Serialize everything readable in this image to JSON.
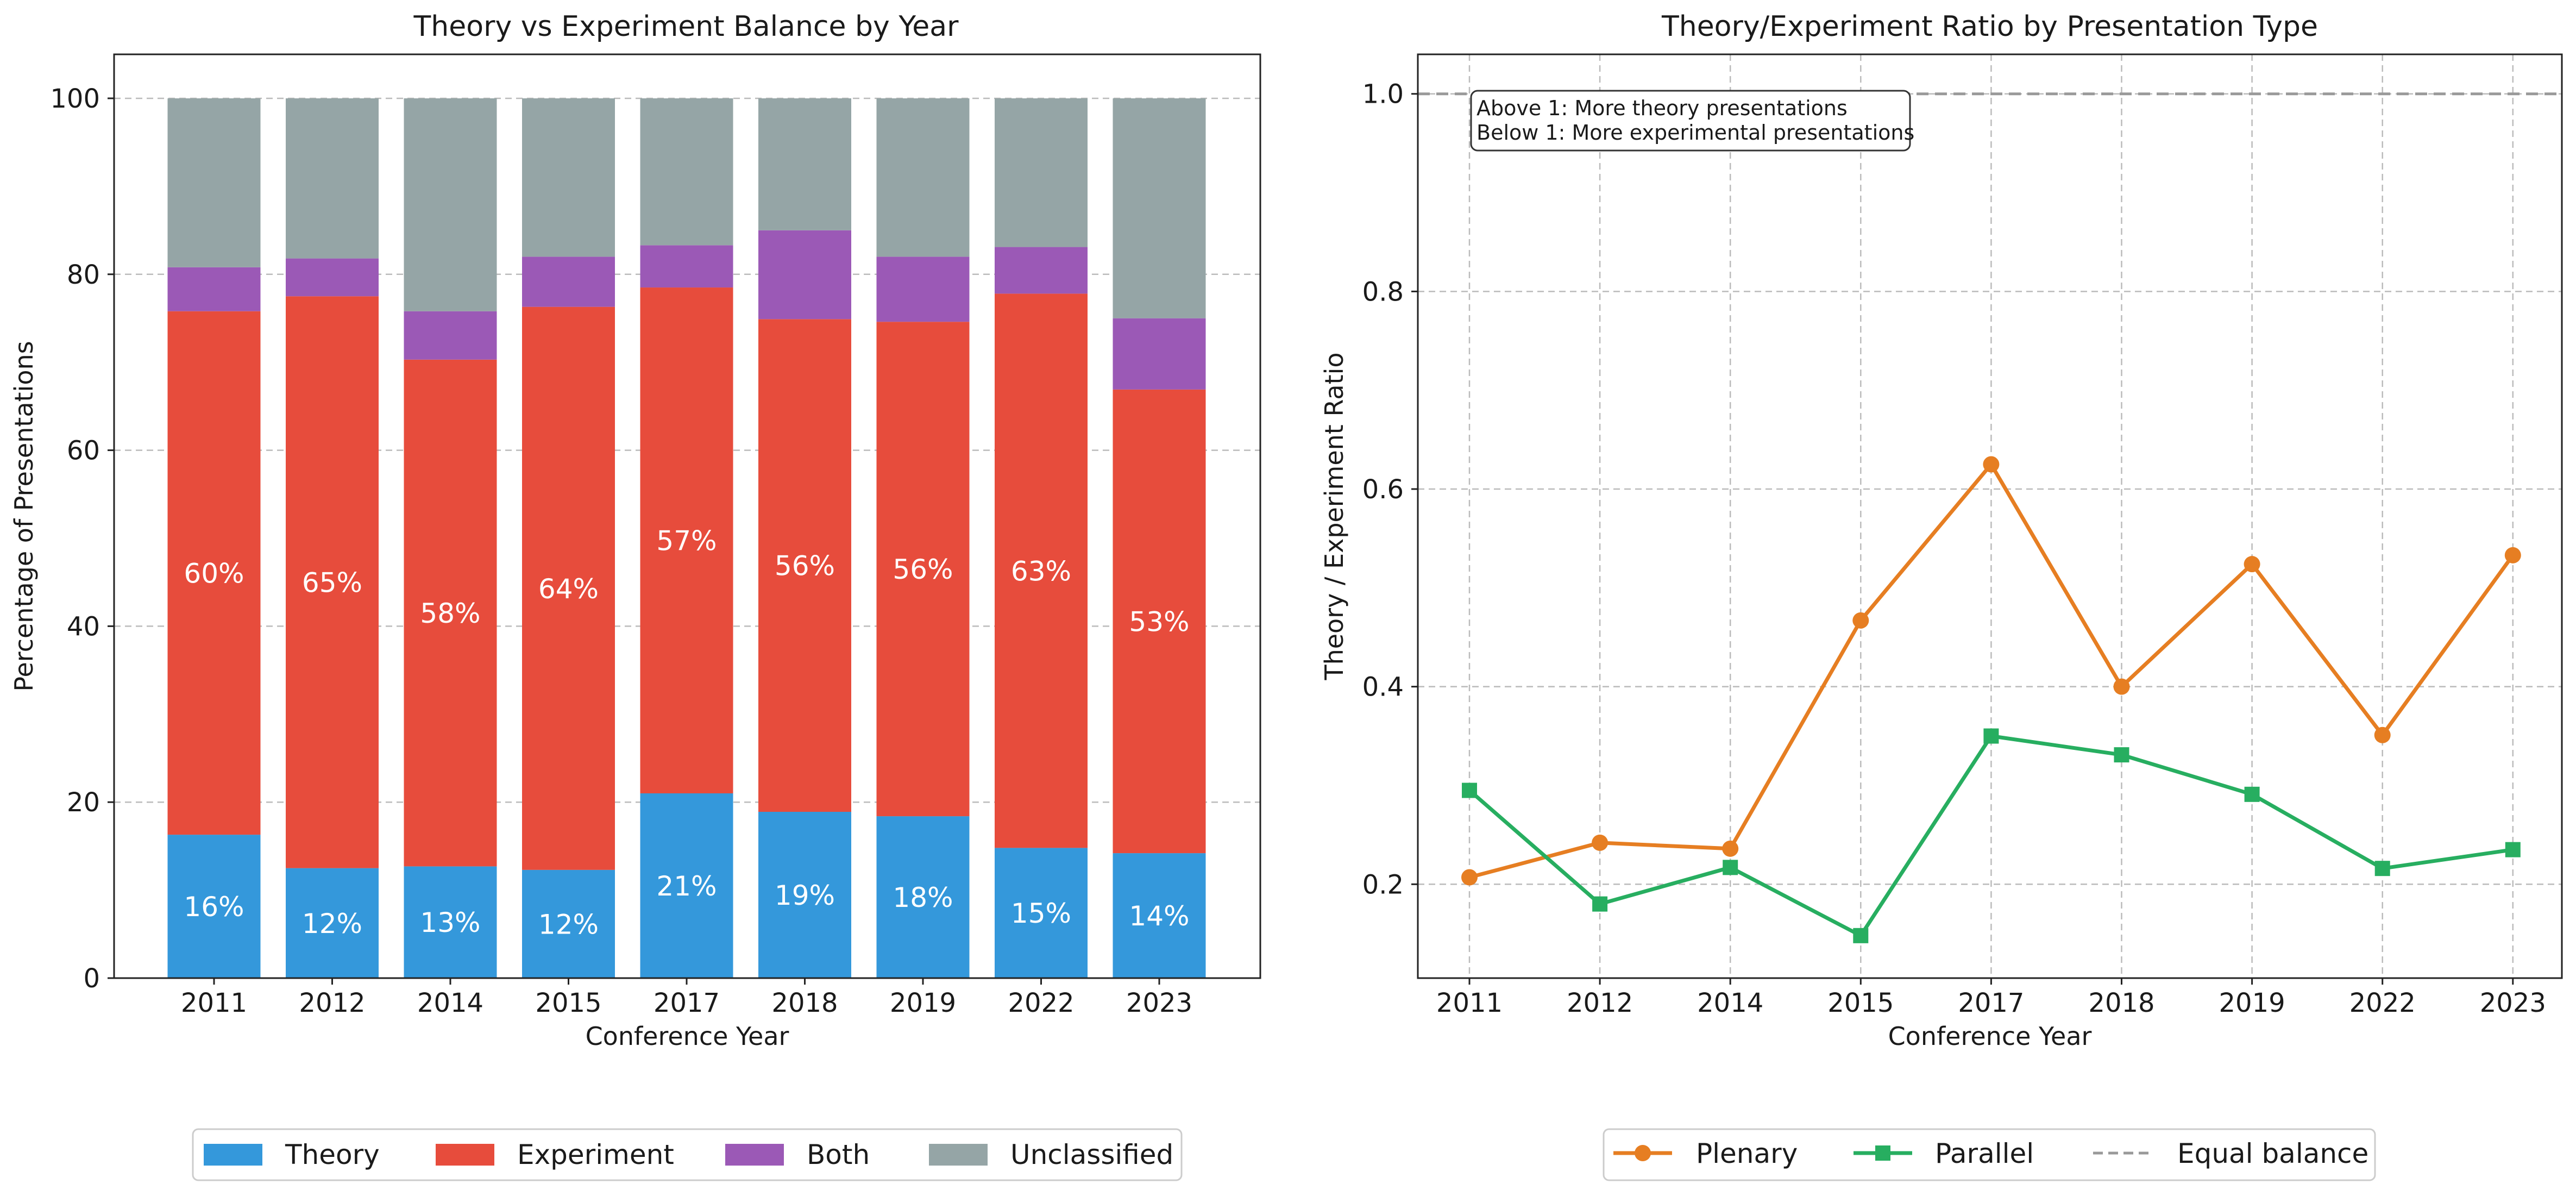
{
  "colors": {
    "theory": "#3498db",
    "experiment": "#e74c3c",
    "both": "#9b59b6",
    "unclassified": "#95a5a6",
    "plenary": "#e67e22",
    "parallel": "#27ae60",
    "equal": "#999999"
  },
  "chart_data": [
    {
      "type": "bar",
      "stacked": true,
      "title": "Theory vs Experiment Balance by Year",
      "xlabel": "Conference Year",
      "ylabel": "Percentage of Presentations",
      "ylim": [
        0,
        105
      ],
      "yticks": [
        "0",
        "20",
        "40",
        "60",
        "80",
        "100"
      ],
      "grid": true,
      "legend_position": "bottom-center",
      "categories": [
        "2011",
        "2012",
        "2014",
        "2015",
        "2017",
        "2018",
        "2019",
        "2022",
        "2023"
      ],
      "series": [
        {
          "name": "Theory",
          "color_key": "theory",
          "values": [
            16.3,
            12.5,
            12.7,
            12.3,
            21.0,
            18.9,
            18.4,
            14.8,
            14.2
          ]
        },
        {
          "name": "Experiment",
          "color_key": "experiment",
          "values": [
            59.5,
            65.0,
            57.6,
            64.0,
            57.5,
            56.0,
            56.2,
            63.0,
            52.7
          ]
        },
        {
          "name": "Both",
          "color_key": "both",
          "values": [
            5.0,
            4.3,
            5.5,
            5.7,
            4.8,
            10.1,
            7.4,
            5.3,
            8.1
          ]
        },
        {
          "name": "Unclassified",
          "color_key": "unclassified",
          "values": [
            19.2,
            18.2,
            24.2,
            18.0,
            16.7,
            15.0,
            18.0,
            16.9,
            25.0
          ]
        }
      ],
      "bar_labels": {
        "Theory": [
          "16%",
          "12%",
          "13%",
          "12%",
          "21%",
          "19%",
          "18%",
          "15%",
          "14%"
        ],
        "Experiment": [
          "60%",
          "65%",
          "58%",
          "64%",
          "57%",
          "56%",
          "56%",
          "63%",
          "53%"
        ]
      }
    },
    {
      "type": "line",
      "title": "Theory/Experiment Ratio by Presentation Type",
      "xlabel": "Conference Year",
      "ylabel": "Theory / Experiment Ratio",
      "ylim": [
        0.105,
        1.04
      ],
      "yticks": [
        "0.2",
        "0.4",
        "0.6",
        "0.8",
        "1.0"
      ],
      "grid": true,
      "legend_position": "bottom-center",
      "categories": [
        "2011",
        "2012",
        "2014",
        "2015",
        "2017",
        "2018",
        "2019",
        "2022",
        "2023"
      ],
      "series": [
        {
          "name": "Plenary",
          "color_key": "plenary",
          "marker": "circle",
          "values": [
            0.207,
            0.242,
            0.236,
            0.467,
            0.625,
            0.4,
            0.524,
            0.351,
            0.533
          ]
        },
        {
          "name": "Parallel",
          "color_key": "parallel",
          "marker": "square",
          "values": [
            0.295,
            0.18,
            0.217,
            0.148,
            0.35,
            0.331,
            0.291,
            0.216,
            0.235
          ]
        }
      ],
      "reference_line": {
        "name": "Equal balance",
        "y": 1.0,
        "style": "dashed",
        "color_key": "equal"
      },
      "annotation": [
        "Above 1: More theory presentations",
        "Below 1: More experimental presentations"
      ]
    }
  ]
}
